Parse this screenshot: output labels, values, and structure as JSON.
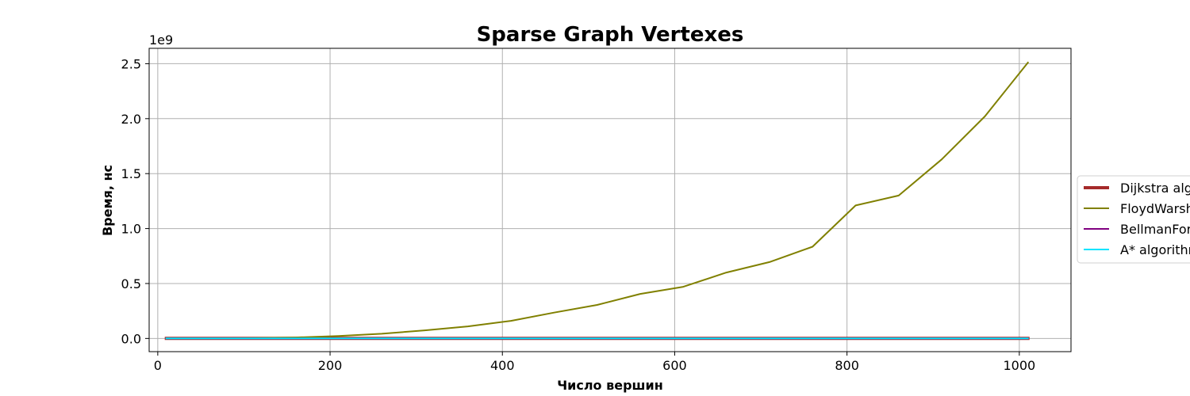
{
  "chart_data": {
    "type": "line",
    "title": "Sparse Graph Vertexes",
    "xlabel": "Число вершин",
    "ylabel": "Время, нс",
    "y_offset_text": "1e9",
    "xlim": [
      -10,
      1060
    ],
    "ylim": [
      -0.12,
      2.64
    ],
    "y_scale_factor": 1000000000,
    "x_ticks": [
      0,
      200,
      400,
      600,
      800,
      1000
    ],
    "x_tick_labels": [
      "0",
      "200",
      "400",
      "600",
      "800",
      "1000"
    ],
    "y_ticks": [
      0.0,
      0.5,
      1.0,
      1.5,
      2.0,
      2.5
    ],
    "y_tick_labels": [
      "0.0",
      "0.5",
      "1.0",
      "1.5",
      "2.0",
      "2.5"
    ],
    "grid": true,
    "legend_position": "right",
    "x": [
      10,
      60,
      110,
      160,
      210,
      260,
      310,
      360,
      410,
      460,
      510,
      560,
      610,
      660,
      710,
      760,
      810,
      860,
      910,
      960,
      1010
    ],
    "series": [
      {
        "name": "Dijkstra algorithm",
        "color": "#a52a2a",
        "width": 4,
        "values": [
          0.0,
          0.0,
          0.0,
          0.0,
          0.0,
          0.0,
          0.0,
          0.0,
          0.0,
          0.0,
          0.0,
          0.0,
          0.0,
          0.0,
          0.0,
          0.0,
          0.0,
          0.0,
          0.0,
          0.0,
          0.0
        ]
      },
      {
        "name": "FloydWarshall algorithm",
        "color": "#808000",
        "width": 2,
        "values": [
          0.0,
          0.001,
          0.003,
          0.009,
          0.022,
          0.043,
          0.074,
          0.11,
          0.16,
          0.235,
          0.305,
          0.405,
          0.47,
          0.6,
          0.695,
          0.835,
          1.21,
          1.3,
          1.63,
          2.02,
          2.51
        ]
      },
      {
        "name": "BellmanFord algorithm",
        "color": "#800080",
        "width": 2,
        "values": [
          0.0,
          0.0,
          0.0,
          0.0,
          0.0,
          0.0,
          0.0,
          0.0,
          0.0,
          0.0,
          0.0,
          0.0,
          0.0,
          0.0,
          0.0,
          0.0,
          0.0,
          0.0,
          0.0,
          0.0,
          0.0
        ]
      },
      {
        "name": "A* algorithm",
        "color": "#00e5ff",
        "width": 2,
        "values": [
          0.0,
          0.0,
          0.0,
          0.0,
          0.0,
          0.0,
          0.0,
          0.0,
          0.0,
          0.0,
          0.0,
          0.0,
          0.0,
          0.0,
          0.0,
          0.0,
          0.0,
          0.0,
          0.0,
          0.0,
          0.0
        ]
      }
    ]
  }
}
